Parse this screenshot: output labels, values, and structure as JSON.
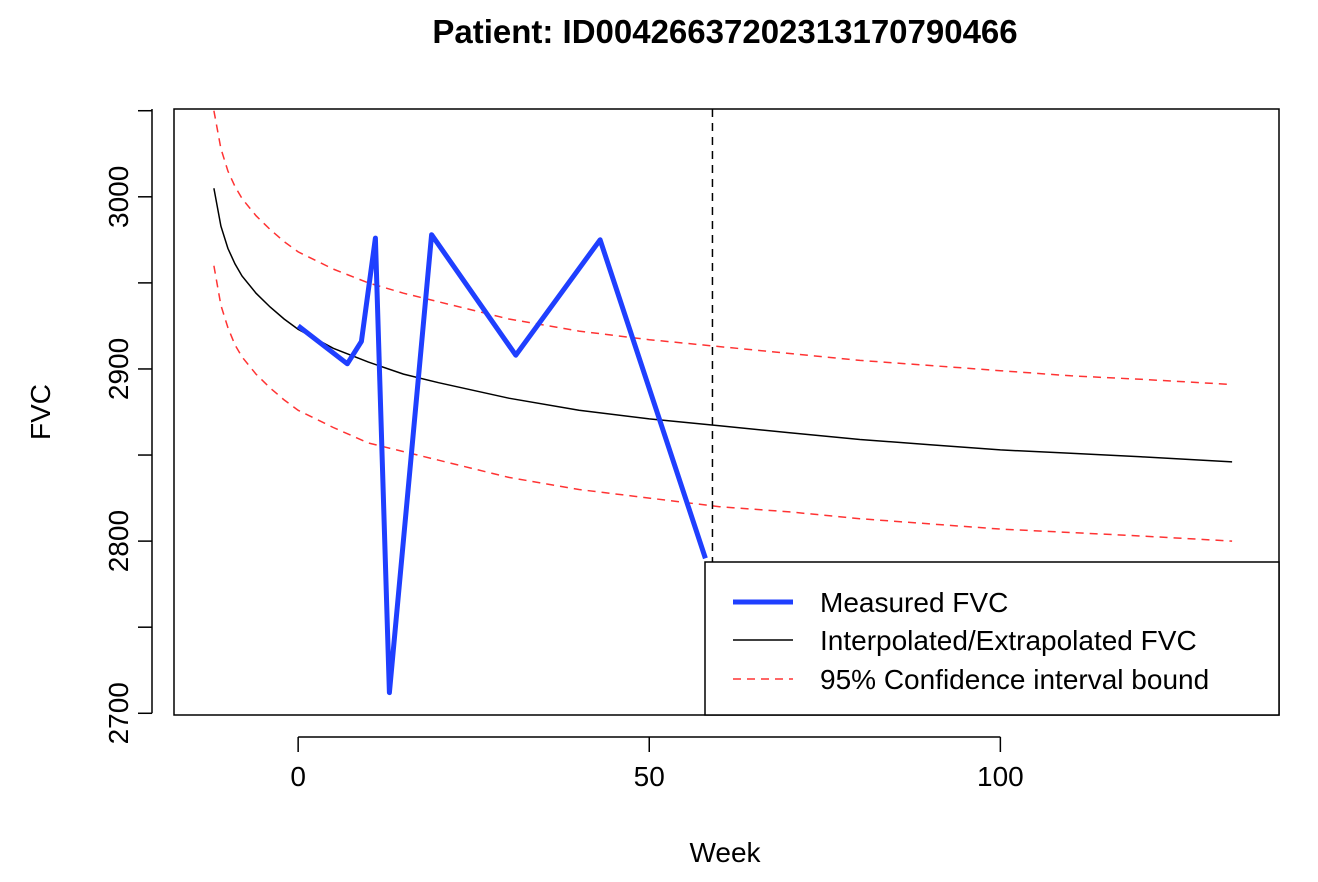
{
  "chart_data": {
    "type": "line",
    "title": "Patient: ID00426637202313170790466",
    "xlabel": "Week",
    "ylabel": "FVC",
    "xlim": [
      -17.68,
      139.68
    ],
    "ylim": [
      2699,
      3051
    ],
    "x_ticks": [
      "0",
      "50",
      "100"
    ],
    "x_tick_values": [
      0,
      50,
      100
    ],
    "y_ticks": [
      "2700",
      "2800",
      "2900",
      "3000"
    ],
    "y_tick_values": [
      2700,
      2800,
      2900,
      3000
    ],
    "vertical_reference_x": 59,
    "legend_position": "bottom-right",
    "legend": [
      {
        "label": "Measured FVC",
        "series": "measured"
      },
      {
        "label": "Interpolated/Extrapolated FVC",
        "series": "fitted"
      },
      {
        "label": "95% Confidence interval bound",
        "series": "ci"
      }
    ],
    "series": [
      {
        "key": "measured",
        "name": "Measured FVC",
        "color": "#1f3fff",
        "style": "solid-thick",
        "x": [
          0,
          7,
          9,
          11,
          13,
          19,
          31,
          43,
          58
        ],
        "y": [
          2925,
          2903,
          2916,
          2976,
          2712,
          2978,
          2908,
          2975,
          2790
        ]
      },
      {
        "key": "fitted",
        "name": "Interpolated/Extrapolated FVC",
        "color": "#000000",
        "style": "solid-thin",
        "x": [
          -12,
          -11,
          -10,
          -9,
          -8,
          -6,
          -4,
          -2,
          0,
          5,
          10,
          15,
          20,
          30,
          40,
          50,
          60,
          70,
          80,
          90,
          100,
          110,
          120,
          133
        ],
        "y": [
          3005,
          2983,
          2970,
          2961,
          2954,
          2944,
          2936,
          2929,
          2923,
          2912,
          2904,
          2897,
          2892,
          2883,
          2876,
          2871,
          2867,
          2863,
          2859,
          2856,
          2853,
          2851,
          2849,
          2846
        ]
      },
      {
        "key": "ci_upper",
        "name": "95% Confidence interval bound",
        "color": "#ff3333",
        "style": "dashed",
        "x": [
          -12,
          -11,
          -10,
          -9,
          -8,
          -6,
          -4,
          -2,
          0,
          5,
          10,
          15,
          20,
          30,
          40,
          50,
          60,
          70,
          80,
          90,
          100,
          110,
          120,
          133
        ],
        "y": [
          3050,
          3028,
          3015,
          3006,
          2999,
          2989,
          2981,
          2974,
          2968,
          2958,
          2950,
          2944,
          2939,
          2929,
          2922,
          2917,
          2913,
          2909,
          2905,
          2902,
          2899,
          2896,
          2894,
          2891
        ]
      },
      {
        "key": "ci_lower",
        "name": "95% Confidence interval bound",
        "color": "#ff3333",
        "style": "dashed",
        "x": [
          -12,
          -11,
          -10,
          -9,
          -8,
          -6,
          -4,
          -2,
          0,
          5,
          10,
          15,
          20,
          30,
          40,
          50,
          60,
          70,
          80,
          90,
          100,
          110,
          120,
          133
        ],
        "y": [
          2960,
          2937,
          2924,
          2914,
          2907,
          2897,
          2889,
          2882,
          2876,
          2866,
          2857,
          2852,
          2847,
          2837,
          2830,
          2825,
          2820,
          2817,
          2813,
          2810,
          2807,
          2805,
          2803,
          2800
        ]
      }
    ]
  }
}
